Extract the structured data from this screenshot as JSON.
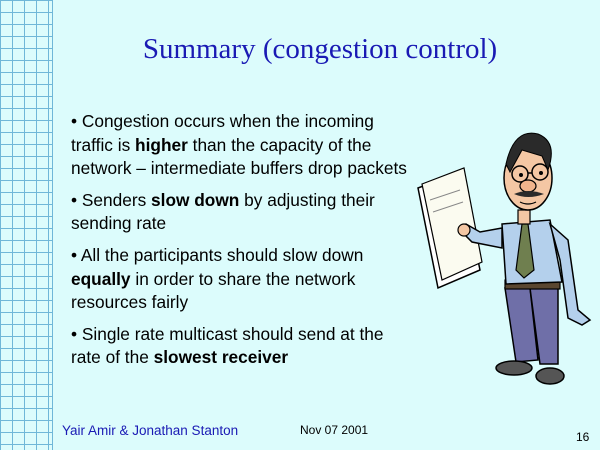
{
  "slide": {
    "title": "Summary (congestion control)",
    "bullets": [
      {
        "parts": [
          {
            "text": "• Congestion occurs when the incoming traffic is ",
            "bold": false
          },
          {
            "text": "higher",
            "bold": true
          },
          {
            "text": " than the capacity of the network – intermediate buffers drop packets",
            "bold": false
          }
        ]
      },
      {
        "parts": [
          {
            "text": "• Senders ",
            "bold": false
          },
          {
            "text": "slow down",
            "bold": true
          },
          {
            "text": " by adjusting their sending rate",
            "bold": false
          }
        ]
      },
      {
        "parts": [
          {
            "text": "• All the participants should slow down ",
            "bold": false
          },
          {
            "text": "equally",
            "bold": true
          },
          {
            "text": " in order to share the network resources fairly",
            "bold": false
          }
        ]
      },
      {
        "parts": [
          {
            "text": "• Single rate multicast should send at the rate of the ",
            "bold": false
          },
          {
            "text": "slowest receiver",
            "bold": true
          }
        ]
      }
    ],
    "footer": {
      "authors": "Yair Amir & Jonathan Stanton",
      "date": "Nov 07 2001",
      "page_number": "16"
    },
    "colors": {
      "background": "#dcfcfc",
      "title": "#1a1ab4",
      "grid_lines": "#6fb7d8"
    },
    "illustration_icon": "man-holding-papers-clipart-icon"
  }
}
